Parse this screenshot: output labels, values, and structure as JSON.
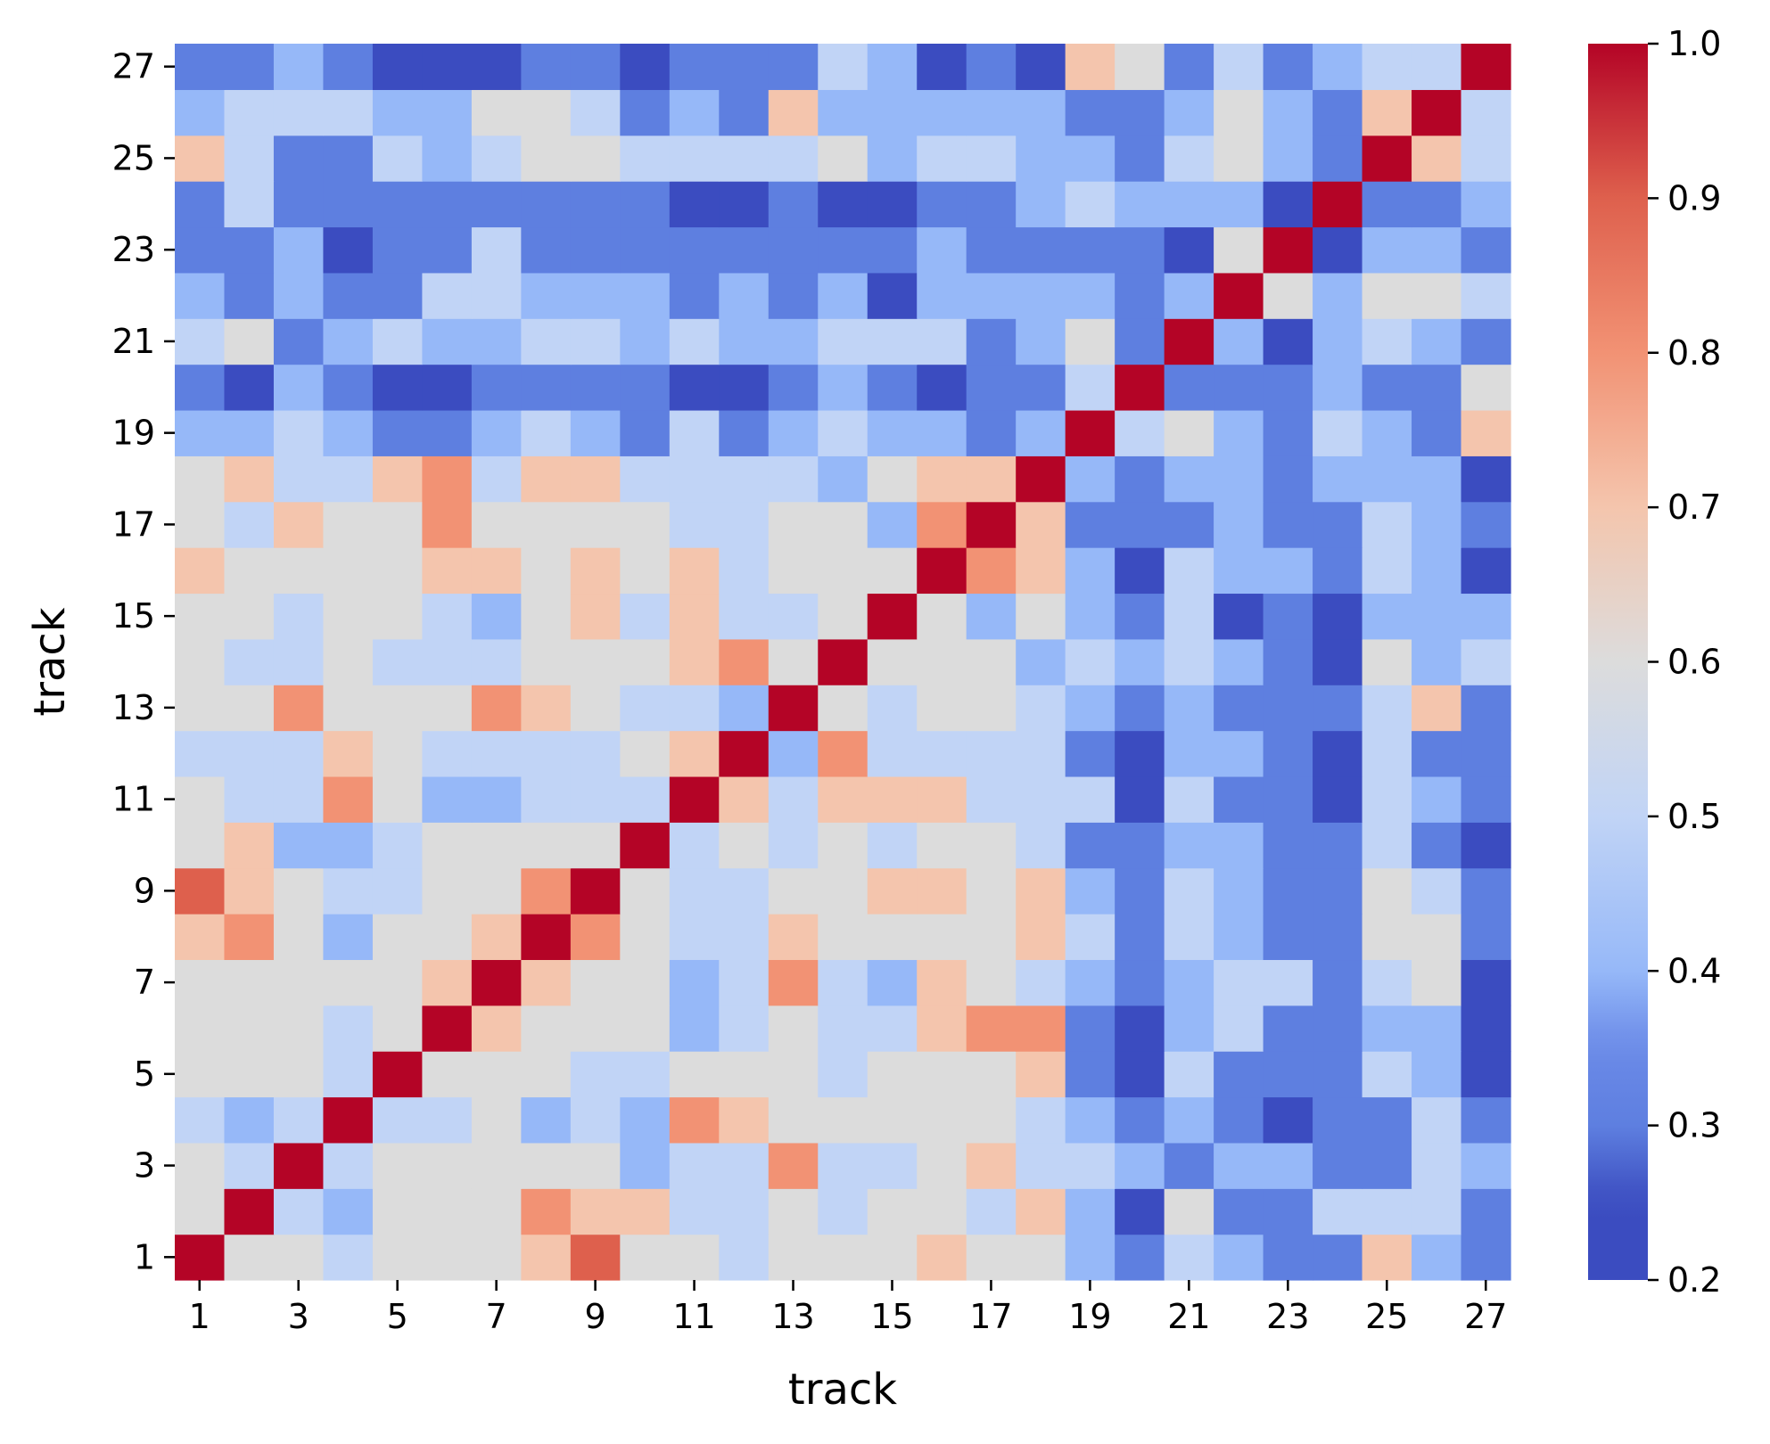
{
  "chart_data": {
    "type": "heatmap",
    "title": "",
    "xlabel": "track",
    "ylabel": "track",
    "x_categories": [
      1,
      2,
      3,
      4,
      5,
      6,
      7,
      8,
      9,
      10,
      11,
      12,
      13,
      14,
      15,
      16,
      17,
      18,
      19,
      20,
      21,
      22,
      23,
      24,
      25,
      26,
      27
    ],
    "y_categories": [
      1,
      2,
      3,
      4,
      5,
      6,
      7,
      8,
      9,
      10,
      11,
      12,
      13,
      14,
      15,
      16,
      17,
      18,
      19,
      20,
      21,
      22,
      23,
      24,
      25,
      26,
      27
    ],
    "x_tick_labels": [
      "1",
      "3",
      "5",
      "7",
      "9",
      "11",
      "13",
      "15",
      "17",
      "19",
      "21",
      "23",
      "25",
      "27"
    ],
    "y_tick_labels": [
      "1",
      "3",
      "5",
      "7",
      "9",
      "11",
      "13",
      "15",
      "17",
      "19",
      "21",
      "23",
      "25",
      "27"
    ],
    "colorbar": {
      "min": 0.2,
      "max": 1.0,
      "ticks": [
        "0.2",
        "0.3",
        "0.4",
        "0.5",
        "0.6",
        "0.7",
        "0.8",
        "0.9",
        "1.0"
      ],
      "colormap": "coolwarm"
    },
    "colormap_stops": [
      {
        "v": 0.25,
        "color": "#3b4cc0"
      },
      {
        "v": 0.3,
        "color": "#5e7fe0"
      },
      {
        "v": 0.35,
        "color": "#6a8ae8"
      },
      {
        "v": 0.4,
        "color": "#96b8f8"
      },
      {
        "v": 0.5,
        "color": "#c1d4f6"
      },
      {
        "v": 0.6,
        "color": "#dcdcdc"
      },
      {
        "v": 0.7,
        "color": "#f4c5ad"
      },
      {
        "v": 0.8,
        "color": "#f29274"
      },
      {
        "v": 0.9,
        "color": "#de604d"
      },
      {
        "v": 1.0,
        "color": "#b40426"
      }
    ],
    "values": [
      [
        1.0,
        0.6,
        0.6,
        0.5,
        0.6,
        0.6,
        0.6,
        0.7,
        0.9,
        0.6,
        0.6,
        0.5,
        0.6,
        0.6,
        0.6,
        0.7,
        0.6,
        0.6,
        0.4,
        0.3,
        0.5,
        0.4,
        0.3,
        0.3,
        0.7,
        0.4,
        0.3
      ],
      [
        0.6,
        1.0,
        0.5,
        0.4,
        0.6,
        0.6,
        0.6,
        0.8,
        0.7,
        0.7,
        0.5,
        0.5,
        0.6,
        0.5,
        0.6,
        0.6,
        0.5,
        0.7,
        0.4,
        0.25,
        0.6,
        0.3,
        0.3,
        0.5,
        0.5,
        0.5,
        0.3
      ],
      [
        0.6,
        0.5,
        1.0,
        0.5,
        0.6,
        0.6,
        0.6,
        0.6,
        0.6,
        0.4,
        0.5,
        0.5,
        0.8,
        0.5,
        0.5,
        0.6,
        0.7,
        0.5,
        0.5,
        0.4,
        0.3,
        0.4,
        0.4,
        0.3,
        0.3,
        0.5,
        0.4
      ],
      [
        0.5,
        0.4,
        0.5,
        1.0,
        0.5,
        0.5,
        0.6,
        0.4,
        0.5,
        0.4,
        0.8,
        0.7,
        0.6,
        0.6,
        0.6,
        0.6,
        0.6,
        0.5,
        0.4,
        0.3,
        0.4,
        0.3,
        0.25,
        0.3,
        0.3,
        0.5,
        0.3
      ],
      [
        0.6,
        0.6,
        0.6,
        0.5,
        1.0,
        0.6,
        0.6,
        0.6,
        0.5,
        0.5,
        0.6,
        0.6,
        0.6,
        0.5,
        0.6,
        0.6,
        0.6,
        0.7,
        0.3,
        0.25,
        0.5,
        0.3,
        0.3,
        0.3,
        0.5,
        0.4,
        0.25
      ],
      [
        0.6,
        0.6,
        0.6,
        0.5,
        0.6,
        1.0,
        0.7,
        0.6,
        0.6,
        0.6,
        0.4,
        0.5,
        0.6,
        0.5,
        0.5,
        0.7,
        0.8,
        0.8,
        0.3,
        0.25,
        0.4,
        0.5,
        0.3,
        0.3,
        0.4,
        0.4,
        0.25
      ],
      [
        0.6,
        0.6,
        0.6,
        0.6,
        0.6,
        0.7,
        1.0,
        0.7,
        0.6,
        0.6,
        0.4,
        0.5,
        0.8,
        0.5,
        0.4,
        0.7,
        0.6,
        0.5,
        0.4,
        0.3,
        0.4,
        0.5,
        0.5,
        0.3,
        0.5,
        0.6,
        0.25
      ],
      [
        0.7,
        0.8,
        0.6,
        0.4,
        0.6,
        0.6,
        0.7,
        1.0,
        0.8,
        0.6,
        0.5,
        0.5,
        0.7,
        0.6,
        0.6,
        0.6,
        0.6,
        0.7,
        0.5,
        0.3,
        0.5,
        0.4,
        0.3,
        0.3,
        0.6,
        0.6,
        0.3
      ],
      [
        0.9,
        0.7,
        0.6,
        0.5,
        0.5,
        0.6,
        0.6,
        0.8,
        1.0,
        0.6,
        0.5,
        0.5,
        0.6,
        0.6,
        0.7,
        0.7,
        0.6,
        0.7,
        0.4,
        0.3,
        0.5,
        0.4,
        0.3,
        0.3,
        0.6,
        0.5,
        0.3
      ],
      [
        0.6,
        0.7,
        0.4,
        0.4,
        0.5,
        0.6,
        0.6,
        0.6,
        0.6,
        1.0,
        0.5,
        0.6,
        0.5,
        0.6,
        0.5,
        0.6,
        0.6,
        0.5,
        0.3,
        0.3,
        0.4,
        0.4,
        0.3,
        0.3,
        0.5,
        0.3,
        0.25
      ],
      [
        0.6,
        0.5,
        0.5,
        0.8,
        0.6,
        0.4,
        0.4,
        0.5,
        0.5,
        0.5,
        1.0,
        0.7,
        0.5,
        0.7,
        0.7,
        0.7,
        0.5,
        0.5,
        0.5,
        0.25,
        0.5,
        0.3,
        0.3,
        0.25,
        0.5,
        0.4,
        0.3
      ],
      [
        0.5,
        0.5,
        0.5,
        0.7,
        0.6,
        0.5,
        0.5,
        0.5,
        0.5,
        0.6,
        0.7,
        1.0,
        0.4,
        0.8,
        0.5,
        0.5,
        0.5,
        0.5,
        0.3,
        0.25,
        0.4,
        0.4,
        0.3,
        0.25,
        0.5,
        0.3,
        0.3
      ],
      [
        0.6,
        0.6,
        0.8,
        0.6,
        0.6,
        0.6,
        0.8,
        0.7,
        0.6,
        0.5,
        0.5,
        0.4,
        1.0,
        0.6,
        0.5,
        0.6,
        0.6,
        0.5,
        0.4,
        0.3,
        0.4,
        0.3,
        0.3,
        0.3,
        0.5,
        0.7,
        0.3
      ],
      [
        0.6,
        0.5,
        0.5,
        0.6,
        0.5,
        0.5,
        0.5,
        0.6,
        0.6,
        0.6,
        0.7,
        0.8,
        0.6,
        1.0,
        0.6,
        0.6,
        0.6,
        0.4,
        0.5,
        0.4,
        0.5,
        0.4,
        0.3,
        0.25,
        0.6,
        0.4,
        0.5
      ],
      [
        0.6,
        0.6,
        0.5,
        0.6,
        0.6,
        0.5,
        0.4,
        0.6,
        0.7,
        0.5,
        0.7,
        0.5,
        0.5,
        0.6,
        1.0,
        0.6,
        0.4,
        0.6,
        0.4,
        0.3,
        0.5,
        0.25,
        0.3,
        0.25,
        0.4,
        0.4,
        0.4
      ],
      [
        0.7,
        0.6,
        0.6,
        0.6,
        0.6,
        0.7,
        0.7,
        0.6,
        0.7,
        0.6,
        0.7,
        0.5,
        0.6,
        0.6,
        0.6,
        1.0,
        0.8,
        0.7,
        0.4,
        0.25,
        0.5,
        0.4,
        0.4,
        0.3,
        0.5,
        0.4,
        0.25
      ],
      [
        0.6,
        0.5,
        0.7,
        0.6,
        0.6,
        0.8,
        0.6,
        0.6,
        0.6,
        0.6,
        0.5,
        0.5,
        0.6,
        0.6,
        0.4,
        0.8,
        1.0,
        0.7,
        0.3,
        0.3,
        0.3,
        0.4,
        0.3,
        0.3,
        0.5,
        0.4,
        0.3
      ],
      [
        0.6,
        0.7,
        0.5,
        0.5,
        0.7,
        0.8,
        0.5,
        0.7,
        0.7,
        0.5,
        0.5,
        0.5,
        0.5,
        0.4,
        0.6,
        0.7,
        0.7,
        1.0,
        0.4,
        0.3,
        0.4,
        0.4,
        0.3,
        0.4,
        0.4,
        0.4,
        0.25
      ],
      [
        0.4,
        0.4,
        0.5,
        0.4,
        0.3,
        0.3,
        0.4,
        0.5,
        0.4,
        0.3,
        0.5,
        0.3,
        0.4,
        0.5,
        0.4,
        0.4,
        0.3,
        0.4,
        1.0,
        0.5,
        0.6,
        0.4,
        0.3,
        0.5,
        0.4,
        0.3,
        0.7
      ],
      [
        0.3,
        0.25,
        0.4,
        0.3,
        0.25,
        0.25,
        0.3,
        0.3,
        0.3,
        0.3,
        0.25,
        0.25,
        0.3,
        0.4,
        0.3,
        0.25,
        0.3,
        0.3,
        0.5,
        1.0,
        0.3,
        0.3,
        0.3,
        0.4,
        0.3,
        0.3,
        0.6
      ],
      [
        0.5,
        0.6,
        0.3,
        0.4,
        0.5,
        0.4,
        0.4,
        0.5,
        0.5,
        0.4,
        0.5,
        0.4,
        0.4,
        0.5,
        0.5,
        0.5,
        0.3,
        0.4,
        0.6,
        0.3,
        1.0,
        0.4,
        0.25,
        0.4,
        0.5,
        0.4,
        0.3
      ],
      [
        0.4,
        0.3,
        0.4,
        0.3,
        0.3,
        0.5,
        0.5,
        0.4,
        0.4,
        0.4,
        0.3,
        0.4,
        0.3,
        0.4,
        0.25,
        0.4,
        0.4,
        0.4,
        0.4,
        0.3,
        0.4,
        1.0,
        0.6,
        0.4,
        0.6,
        0.6,
        0.5
      ],
      [
        0.3,
        0.3,
        0.4,
        0.25,
        0.3,
        0.3,
        0.5,
        0.3,
        0.3,
        0.3,
        0.3,
        0.3,
        0.3,
        0.3,
        0.3,
        0.4,
        0.3,
        0.3,
        0.3,
        0.3,
        0.25,
        0.6,
        1.0,
        0.25,
        0.4,
        0.4,
        0.3
      ],
      [
        0.3,
        0.5,
        0.3,
        0.3,
        0.3,
        0.3,
        0.3,
        0.3,
        0.3,
        0.3,
        0.25,
        0.25,
        0.3,
        0.25,
        0.25,
        0.3,
        0.3,
        0.4,
        0.5,
        0.4,
        0.4,
        0.4,
        0.25,
        1.0,
        0.3,
        0.3,
        0.4
      ],
      [
        0.7,
        0.5,
        0.3,
        0.3,
        0.5,
        0.4,
        0.5,
        0.6,
        0.6,
        0.5,
        0.5,
        0.5,
        0.5,
        0.6,
        0.4,
        0.5,
        0.5,
        0.4,
        0.4,
        0.3,
        0.5,
        0.6,
        0.4,
        0.3,
        1.0,
        0.7,
        0.5
      ],
      [
        0.4,
        0.5,
        0.5,
        0.5,
        0.4,
        0.4,
        0.6,
        0.6,
        0.5,
        0.3,
        0.4,
        0.3,
        0.7,
        0.4,
        0.4,
        0.4,
        0.4,
        0.4,
        0.3,
        0.3,
        0.4,
        0.6,
        0.4,
        0.3,
        0.7,
        1.0,
        0.5
      ],
      [
        0.3,
        0.3,
        0.4,
        0.3,
        0.25,
        0.25,
        0.25,
        0.3,
        0.3,
        0.25,
        0.3,
        0.3,
        0.3,
        0.5,
        0.4,
        0.25,
        0.3,
        0.25,
        0.7,
        0.6,
        0.3,
        0.5,
        0.3,
        0.4,
        0.5,
        0.5,
        1.0
      ]
    ]
  }
}
